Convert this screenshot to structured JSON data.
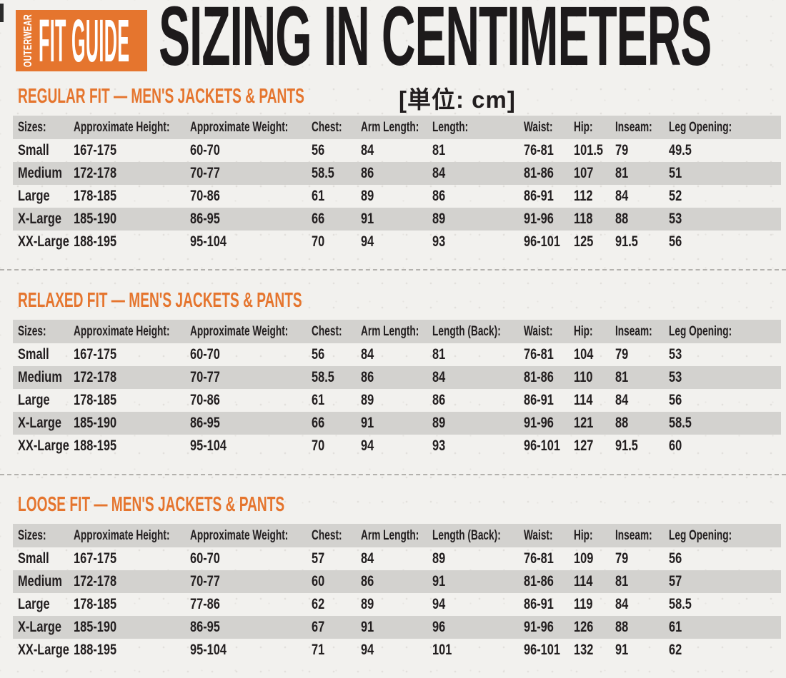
{
  "colors": {
    "accent_orange": "#E5752E",
    "ink_black": "#221E1F",
    "row_gray": "#D3D2CF",
    "background": "#F2F1EE"
  },
  "header": {
    "badge_vertical_label": "OUTERWEAR",
    "badge_label": "FIT GUIDE",
    "title": "SIZING IN CENTIMETERS",
    "unit_label": "[単位: cm]"
  },
  "tables": [
    {
      "section_title": "REGULAR FIT  —  MEN'S JACKETS & PANTS",
      "columns": [
        "Sizes:",
        "Approximate Height:",
        "Approximate Weight:",
        "Chest:",
        "Arm Length:",
        "Length:",
        "Waist:",
        "Hip:",
        "Inseam:",
        "Leg Opening:"
      ],
      "rows": [
        [
          "Small",
          "167-175",
          "60-70",
          "56",
          "84",
          "81",
          "76-81",
          "101.5",
          "79",
          "49.5"
        ],
        [
          "Medium",
          "172-178",
          "70-77",
          "58.5",
          "86",
          "84",
          "81-86",
          "107",
          "81",
          "51"
        ],
        [
          "Large",
          "178-185",
          "70-86",
          "61",
          "89",
          "86",
          "86-91",
          "112",
          "84",
          "52"
        ],
        [
          "X-Large",
          "185-190",
          "86-95",
          "66",
          "91",
          "89",
          "91-96",
          "118",
          "88",
          "53"
        ],
        [
          "XX-Large",
          "188-195",
          "95-104",
          "70",
          "94",
          "93",
          "96-101",
          "125",
          "91.5",
          "56"
        ]
      ]
    },
    {
      "section_title": "RELAXED FIT  —  MEN'S JACKETS & PANTS",
      "columns": [
        "Sizes:",
        "Approximate Height:",
        "Approximate Weight:",
        "Chest:",
        "Arm Length:",
        "Length (Back):",
        "Waist:",
        "Hip:",
        "Inseam:",
        "Leg Opening:"
      ],
      "rows": [
        [
          "Small",
          "167-175",
          "60-70",
          "56",
          "84",
          "81",
          "76-81",
          "104",
          "79",
          "53"
        ],
        [
          "Medium",
          "172-178",
          "70-77",
          "58.5",
          "86",
          "84",
          "81-86",
          "110",
          "81",
          "53"
        ],
        [
          "Large",
          "178-185",
          "70-86",
          "61",
          "89",
          "86",
          "86-91",
          "114",
          "84",
          "56"
        ],
        [
          "X-Large",
          "185-190",
          "86-95",
          "66",
          "91",
          "89",
          "91-96",
          "121",
          "88",
          "58.5"
        ],
        [
          "XX-Large",
          "188-195",
          "95-104",
          "70",
          "94",
          "93",
          "96-101",
          "127",
          "91.5",
          "60"
        ]
      ]
    },
    {
      "section_title": "LOOSE FIT  —  MEN'S JACKETS & PANTS",
      "columns": [
        "Sizes:",
        "Approximate Height:",
        "Approximate Weight:",
        "Chest:",
        "Arm Length:",
        "Length (Back):",
        "Waist:",
        "Hip:",
        "Inseam:",
        "Leg Opening:"
      ],
      "rows": [
        [
          "Small",
          "167-175",
          "60-70",
          "57",
          "84",
          "89",
          "76-81",
          "109",
          "79",
          "56"
        ],
        [
          "Medium",
          "172-178",
          "70-77",
          "60",
          "86",
          "91",
          "81-86",
          "114",
          "81",
          "57"
        ],
        [
          "Large",
          "178-185",
          "77-86",
          "62",
          "89",
          "94",
          "86-91",
          "119",
          "84",
          "58.5"
        ],
        [
          "X-Large",
          "185-190",
          "86-95",
          "67",
          "91",
          "96",
          "91-96",
          "126",
          "88",
          "61"
        ],
        [
          "XX-Large",
          "188-195",
          "95-104",
          "71",
          "94",
          "101",
          "96-101",
          "132",
          "91",
          "62"
        ]
      ]
    }
  ]
}
